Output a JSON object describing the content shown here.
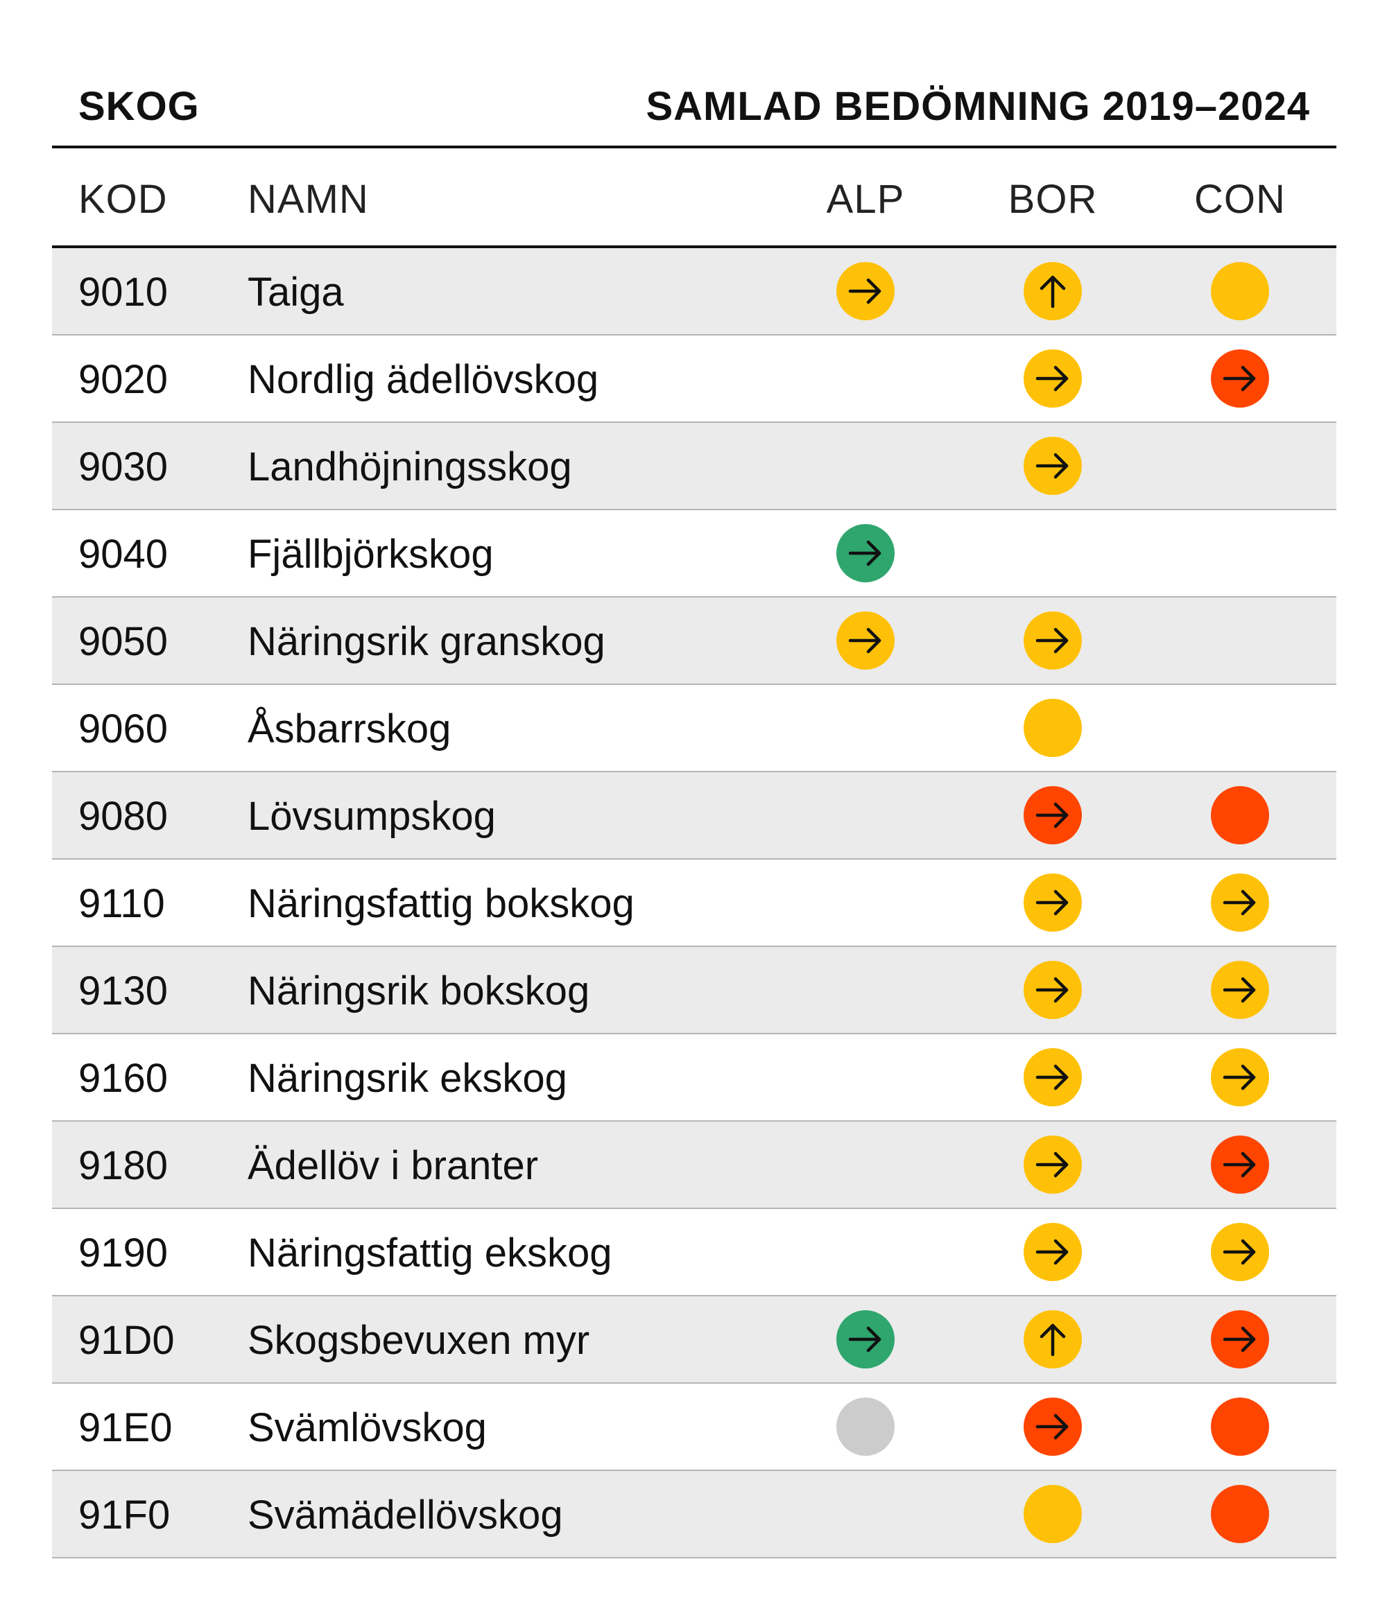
{
  "title_left": "SKOG",
  "title_right": "SAMLAD BEDÖMNING 2019–2024",
  "headers": {
    "kod": "KOD",
    "namn": "NAMN",
    "alp": "ALP",
    "bor": "BOR",
    "con": "CON"
  },
  "colors": {
    "yellow": "#FFC107",
    "red": "#FF4500",
    "green": "#2FA66E",
    "gray": "#CCCCCC"
  },
  "rows": [
    {
      "kod": "9010",
      "namn": "Taiga",
      "alp": {
        "color": "yellow",
        "arrow": "right"
      },
      "bor": {
        "color": "yellow",
        "arrow": "up"
      },
      "con": {
        "color": "yellow",
        "arrow": "none"
      }
    },
    {
      "kod": "9020",
      "namn": "Nordlig ädellövskog",
      "alp": null,
      "bor": {
        "color": "yellow",
        "arrow": "right"
      },
      "con": {
        "color": "red",
        "arrow": "right"
      }
    },
    {
      "kod": "9030",
      "namn": "Landhöjningsskog",
      "alp": null,
      "bor": {
        "color": "yellow",
        "arrow": "right"
      },
      "con": null
    },
    {
      "kod": "9040",
      "namn": "Fjällbjörkskog",
      "alp": {
        "color": "green",
        "arrow": "right"
      },
      "bor": null,
      "con": null
    },
    {
      "kod": "9050",
      "namn": "Näringsrik granskog",
      "alp": {
        "color": "yellow",
        "arrow": "right"
      },
      "bor": {
        "color": "yellow",
        "arrow": "right"
      },
      "con": null
    },
    {
      "kod": "9060",
      "namn": "Åsbarrskog",
      "alp": null,
      "bor": {
        "color": "yellow",
        "arrow": "none"
      },
      "con": null
    },
    {
      "kod": "9080",
      "namn": "Lövsumpskog",
      "alp": null,
      "bor": {
        "color": "red",
        "arrow": "right"
      },
      "con": {
        "color": "red",
        "arrow": "none"
      }
    },
    {
      "kod": "9110",
      "namn": "Näringsfattig bokskog",
      "alp": null,
      "bor": {
        "color": "yellow",
        "arrow": "right"
      },
      "con": {
        "color": "yellow",
        "arrow": "right"
      }
    },
    {
      "kod": "9130",
      "namn": "Näringsrik bokskog",
      "alp": null,
      "bor": {
        "color": "yellow",
        "arrow": "right"
      },
      "con": {
        "color": "yellow",
        "arrow": "right"
      }
    },
    {
      "kod": "9160",
      "namn": "Näringsrik ekskog",
      "alp": null,
      "bor": {
        "color": "yellow",
        "arrow": "right"
      },
      "con": {
        "color": "yellow",
        "arrow": "right"
      }
    },
    {
      "kod": "9180",
      "namn": "Ädellöv i branter",
      "alp": null,
      "bor": {
        "color": "yellow",
        "arrow": "right"
      },
      "con": {
        "color": "red",
        "arrow": "right"
      }
    },
    {
      "kod": "9190",
      "namn": "Näringsfattig ekskog",
      "alp": null,
      "bor": {
        "color": "yellow",
        "arrow": "right"
      },
      "con": {
        "color": "yellow",
        "arrow": "right"
      }
    },
    {
      "kod": "91D0",
      "namn": "Skogsbevuxen myr",
      "alp": {
        "color": "green",
        "arrow": "right"
      },
      "bor": {
        "color": "yellow",
        "arrow": "up"
      },
      "con": {
        "color": "red",
        "arrow": "right"
      }
    },
    {
      "kod": "91E0",
      "namn": "Svämlövskog",
      "alp": {
        "color": "gray",
        "arrow": "none"
      },
      "bor": {
        "color": "red",
        "arrow": "right"
      },
      "con": {
        "color": "red",
        "arrow": "none"
      }
    },
    {
      "kod": "91F0",
      "namn": "Svämädellövskog",
      "alp": null,
      "bor": {
        "color": "yellow",
        "arrow": "none"
      },
      "con": {
        "color": "red",
        "arrow": "none"
      }
    }
  ]
}
